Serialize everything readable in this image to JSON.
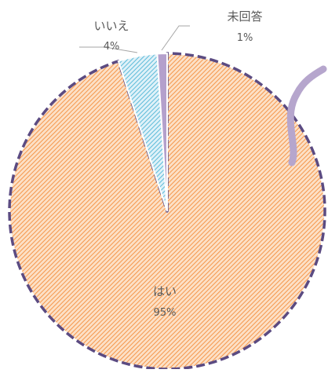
{
  "chart_data": {
    "type": "pie",
    "title": "",
    "slices": [
      {
        "label": "はい",
        "value": 95,
        "percent_label": "95%",
        "color": "#f8a865"
      },
      {
        "label": "いいえ",
        "value": 4,
        "percent_label": "4%",
        "color": "#8fd0e6"
      },
      {
        "label": "未回答",
        "value": 1,
        "percent_label": "1%",
        "color": "#b4a0cc"
      }
    ],
    "highlight": {
      "slice": "はい",
      "outline": "dashed",
      "outline_color": "#5b4b82"
    },
    "callout_color": "#b6a6cd",
    "data_labels": true,
    "legend": "none"
  }
}
